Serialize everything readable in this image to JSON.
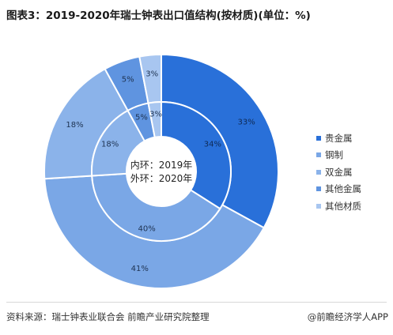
{
  "title": "图表3：2019-2020年瑞士钟表出口值结构(按材质)(单位：%)",
  "chart_data": {
    "type": "pie",
    "subtype": "nested-donut",
    "categories": [
      "贵金属",
      "钢制",
      "双金属",
      "其他金属",
      "其他材质"
    ],
    "colors": [
      "#2970d9",
      "#7aa7e6",
      "#8bb3ea",
      "#5f94e0",
      "#a8c6f0"
    ],
    "series": [
      {
        "name": "2019年",
        "ring": "inner",
        "values": [
          34,
          40,
          18,
          5,
          3
        ]
      },
      {
        "name": "2020年",
        "ring": "outer",
        "values": [
          33,
          41,
          18,
          5,
          3
        ]
      }
    ],
    "center_label_lines": [
      "内环：2019年",
      "外环：2020年"
    ],
    "legend_position": "right"
  },
  "footer": {
    "source": "资料来源：瑞士钟表业联合会 前瞻产业研究院整理",
    "credit": "@前瞻经济学人APP"
  }
}
